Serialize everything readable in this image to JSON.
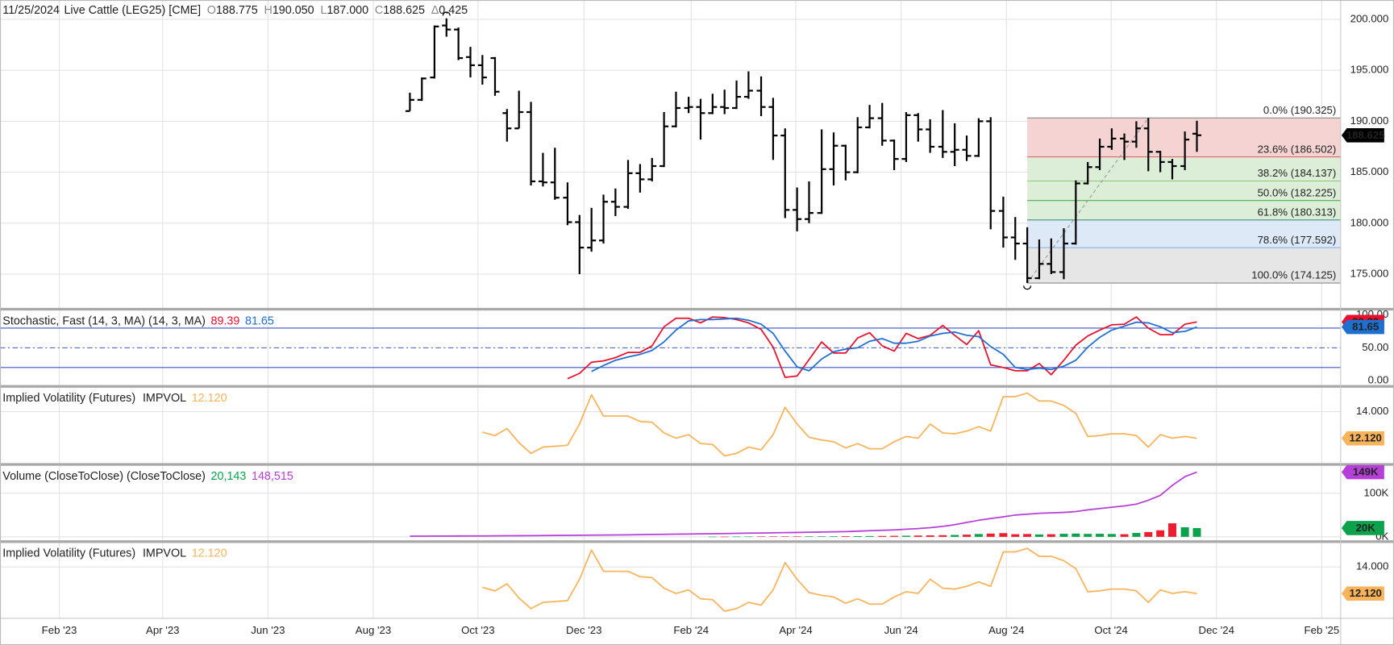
{
  "chart_data": [
    {
      "type": "ohlc",
      "header": {
        "date": "11/25/2024",
        "symbol": "Live Cattle (LEG25) [CME]",
        "fields": [
          {
            "key": "O",
            "label": "188.775"
          },
          {
            "key": "H",
            "label": "190.050"
          },
          {
            "key": "L",
            "label": "187.000"
          },
          {
            "key": "C",
            "label": "188.625"
          },
          {
            "key": "Δ",
            "label": "0.425"
          }
        ]
      },
      "color": "#000000",
      "tag_color": "#000000",
      "grid": true,
      "xlim": [
        2022.989,
        2025.115
      ],
      "xticks": [
        {
          "value": 2023.083,
          "label": "Feb '23"
        },
        {
          "value": 2023.247,
          "label": "Apr '23"
        },
        {
          "value": 2023.414,
          "label": "Jun '23"
        },
        {
          "value": 2023.581,
          "label": "Aug '23"
        },
        {
          "value": 2023.747,
          "label": "Oct '23"
        },
        {
          "value": 2023.915,
          "label": "Dec '23"
        },
        {
          "value": 2024.085,
          "label": "Feb '24"
        },
        {
          "value": 2024.251,
          "label": "Apr '24"
        },
        {
          "value": 2024.418,
          "label": "Jun '24"
        },
        {
          "value": 2024.585,
          "label": "Aug '24"
        },
        {
          "value": 2024.751,
          "label": "Oct '24"
        },
        {
          "value": 2024.918,
          "label": "Dec '24"
        },
        {
          "value": 2025.085,
          "label": "Feb '25"
        }
      ],
      "ylim": [
        171.6,
        201.9
      ],
      "yticks": [
        {
          "value": 175,
          "label": "175.000"
        },
        {
          "value": 180,
          "label": "180.000"
        },
        {
          "value": 185,
          "label": "185.000"
        },
        {
          "value": 190,
          "label": "190.000"
        },
        {
          "value": 195,
          "label": "195.000"
        },
        {
          "value": 200,
          "label": "200.000"
        }
      ],
      "x": [
        2023.639,
        2023.658,
        2023.678,
        2023.697,
        2023.716,
        2023.735,
        2023.754,
        2023.774,
        2023.793,
        2023.812,
        2023.831,
        2023.85,
        2023.869,
        2023.889,
        2023.908,
        2023.927,
        2023.946,
        2023.965,
        2023.985,
        2024.004,
        2024.023,
        2024.042,
        2024.061,
        2024.081,
        2024.1,
        2024.119,
        2024.138,
        2024.157,
        2024.176,
        2024.196,
        2024.215,
        2024.234,
        2024.253,
        2024.272,
        2024.292,
        2024.311,
        2024.33,
        2024.349,
        2024.368,
        2024.388,
        2024.407,
        2024.426,
        2024.445,
        2024.464,
        2024.484,
        2024.503,
        2024.522,
        2024.541,
        2024.56,
        2024.58,
        2024.599,
        2024.618,
        2024.637,
        2024.656,
        2024.676,
        2024.695,
        2024.714,
        2024.733,
        2024.752,
        2024.772,
        2024.791,
        2024.81,
        2024.829,
        2024.848,
        2024.868,
        2024.887
      ],
      "open": [
        191.0,
        192.1,
        194.3,
        199.4,
        199.0,
        196.3,
        195.5,
        196.2,
        190.8,
        189.3,
        190.9,
        184.1,
        184.0,
        182.5,
        180.1,
        177.6,
        178.3,
        182.1,
        181.6,
        184.9,
        184.3,
        185.6,
        189.5,
        191.3,
        191.4,
        190.8,
        191.4,
        191.3,
        192.4,
        193.0,
        191.4,
        188.6,
        181.3,
        180.4,
        181.0,
        185.3,
        187.6,
        185.0,
        189.4,
        190.3,
        188.1,
        186.3,
        190.6,
        189.2,
        187.5,
        187.0,
        187.2,
        186.6,
        190.0,
        181.2,
        178.6,
        178.0,
        174.6,
        176.0,
        175.2,
        178.0,
        183.9,
        185.5,
        187.5,
        188.3,
        188.0,
        189.3,
        187.0,
        186.0,
        185.6,
        188.775
      ],
      "high": [
        192.8,
        194.3,
        199.4,
        200.1,
        199.2,
        197.3,
        196.5,
        196.3,
        191.2,
        193.0,
        191.9,
        186.9,
        187.4,
        184.0,
        180.8,
        181.5,
        182.8,
        183.4,
        186.2,
        185.8,
        186.4,
        190.9,
        192.9,
        192.4,
        192.2,
        192.7,
        193.1,
        194.0,
        194.9,
        194.4,
        192.3,
        189.3,
        183.5,
        184.1,
        189.2,
        188.9,
        187.7,
        190.4,
        191.6,
        191.8,
        188.2,
        190.9,
        190.8,
        190.2,
        191.1,
        189.8,
        188.6,
        190.3,
        190.4,
        182.6,
        180.6,
        179.6,
        178.4,
        178.5,
        179.5,
        184.2,
        186.0,
        188.3,
        189.3,
        188.8,
        190.0,
        190.325,
        187.1,
        186.3,
        189.0,
        190.05
      ],
      "low": [
        191.0,
        192.0,
        194.2,
        198.3,
        196.0,
        194.3,
        193.6,
        192.5,
        188.0,
        189.3,
        183.7,
        183.6,
        182.3,
        179.8,
        175.0,
        177.2,
        178.0,
        180.7,
        181.4,
        183.0,
        184.1,
        185.5,
        189.4,
        190.8,
        188.2,
        190.7,
        190.7,
        191.2,
        192.2,
        190.5,
        186.2,
        180.5,
        179.2,
        180.0,
        180.9,
        183.7,
        184.2,
        184.9,
        189.3,
        187.6,
        185.2,
        186.0,
        188.0,
        186.9,
        186.4,
        185.6,
        186.1,
        186.5,
        179.4,
        177.6,
        176.4,
        174.125,
        174.5,
        175.0,
        174.5,
        177.9,
        183.8,
        185.2,
        187.2,
        186.2,
        187.4,
        185.1,
        185.0,
        184.3,
        185.2,
        187.0
      ],
      "close": [
        192.1,
        194.2,
        199.3,
        199.0,
        196.2,
        195.5,
        194.3,
        192.9,
        189.3,
        190.9,
        184.1,
        184.0,
        182.5,
        180.1,
        177.6,
        178.3,
        182.1,
        181.6,
        184.9,
        184.3,
        185.6,
        189.5,
        191.3,
        191.4,
        190.8,
        191.4,
        191.3,
        192.4,
        193.0,
        191.4,
        188.6,
        181.3,
        180.4,
        181.0,
        185.3,
        187.6,
        185.0,
        189.4,
        190.3,
        188.1,
        186.3,
        190.6,
        189.2,
        187.5,
        187.0,
        187.2,
        186.6,
        190.0,
        181.2,
        178.6,
        178.0,
        174.6,
        176.0,
        175.2,
        178.0,
        183.9,
        185.5,
        187.5,
        188.3,
        188.0,
        189.3,
        187.0,
        186.0,
        185.6,
        188.2,
        188.625
      ],
      "fib": {
        "x_start": 2024.618,
        "x_end": 2024.81,
        "levels": [
          {
            "value": 190.325,
            "label": "0.0% (190.325)",
            "color": "#8a8a8a"
          },
          {
            "value": 186.502,
            "label": "23.6% (186.502)",
            "color": "#e06666"
          },
          {
            "value": 184.137,
            "label": "38.2% (184.137)",
            "color": "#93c47d"
          },
          {
            "value": 182.225,
            "label": "50.0% (182.225)",
            "color": "#4caf50"
          },
          {
            "value": 180.313,
            "label": "61.8% (180.313)",
            "color": "#3d8f80"
          },
          {
            "value": 177.592,
            "label": "78.6% (177.592)",
            "color": "#8ab4e8"
          },
          {
            "value": 174.125,
            "label": "100.0% (174.125)",
            "color": "#8a8a8a"
          }
        ],
        "fills": [
          "#f6d3d3",
          "#ddeed8",
          "#ddeed8",
          "#ddeed8",
          "#dde9f7",
          "#e6e6e6"
        ]
      }
    },
    {
      "type": "line",
      "title": "Stochastic, Fast (14, 3, MA)  (14, 3, MA)",
      "grid": false,
      "ylim": [
        -8.1,
        106.8
      ],
      "yticks": [
        {
          "value": 0,
          "label": "0.00"
        },
        {
          "value": 50,
          "label": "50.00"
        },
        {
          "value": 100,
          "label": "100.00"
        }
      ],
      "levels": [
        80,
        50,
        20
      ],
      "level_dash": [
        false,
        true,
        false
      ],
      "level_color": "#3a55c8",
      "series": [
        {
          "color": "#e8112d",
          "values": [
            null,
            null,
            null,
            null,
            null,
            null,
            null,
            null,
            null,
            null,
            null,
            null,
            null,
            3,
            11,
            28,
            30,
            35,
            43,
            43,
            53,
            82,
            95,
            95,
            88,
            97,
            96,
            93,
            88,
            78,
            51,
            5,
            7,
            32,
            59,
            42,
            42,
            65,
            73,
            53,
            45,
            72,
            64,
            69,
            84,
            69,
            55,
            76,
            24,
            20,
            15,
            15,
            26,
            9,
            31,
            54,
            68,
            77,
            85,
            86,
            97,
            80,
            70,
            70,
            86,
            89.39
          ]
        },
        {
          "color": "#1f6fd1",
          "values": [
            null,
            null,
            null,
            null,
            null,
            null,
            null,
            null,
            null,
            null,
            null,
            null,
            null,
            null,
            null,
            14,
            23,
            31,
            36,
            40,
            46,
            59,
            77,
            91,
            93,
            93,
            94,
            95,
            92,
            86,
            72,
            45,
            21,
            15,
            33,
            44,
            48,
            50,
            60,
            64,
            57,
            57,
            60,
            68,
            72,
            74,
            69,
            67,
            52,
            40,
            20,
            17,
            19,
            17,
            22,
            31,
            51,
            66,
            77,
            83,
            89,
            88,
            82,
            73,
            75,
            81.65
          ]
        }
      ]
    },
    {
      "type": "line",
      "title": "Implied Volatility (Futures)",
      "indicator": "IMPVOL",
      "grid": true,
      "ylim": [
        10.37,
        15.69
      ],
      "yticks": [
        {
          "value": 14,
          "label": "14.000"
        }
      ],
      "series": [
        {
          "color": "#f9b35a",
          "last_labels": {
            "legend": "12.120",
            "tag": "12.120"
          },
          "values": [
            null,
            null,
            null,
            null,
            null,
            null,
            12.56,
            12.31,
            12.81,
            11.81,
            11.06,
            11.5,
            11.56,
            11.63,
            13.13,
            15.19,
            13.69,
            13.69,
            13.69,
            13.31,
            13.25,
            12.5,
            12.13,
            12.38,
            11.75,
            11.69,
            10.88,
            11.06,
            11.5,
            11.31,
            12.38,
            14.31,
            13.13,
            12.19,
            12.0,
            11.88,
            11.44,
            11.75,
            11.38,
            11.38,
            11.88,
            12.25,
            12.13,
            13.13,
            12.5,
            12.44,
            12.63,
            12.94,
            12.63,
            15.06,
            15.06,
            15.31,
            14.75,
            14.75,
            14.44,
            13.88,
            12.25,
            12.31,
            12.44,
            12.44,
            12.31,
            11.5,
            12.38,
            12.13,
            12.25,
            12.12
          ]
        }
      ]
    },
    {
      "type": "bar",
      "title": "Volume (CloseToClose)  (CloseToClose)",
      "grid": true,
      "ylim": [
        -10000,
        163000
      ],
      "yticks": [
        {
          "value": 0,
          "label": "0K"
        },
        {
          "value": 100000,
          "label": "100K"
        }
      ],
      "series": [
        {
          "type": "bar",
          "up_color": "#0aa24a",
          "down_color": "#ee1c2e",
          "last_labels": {
            "legend": "20,143",
            "tag": "20K"
          },
          "values": [
            null,
            null,
            null,
            null,
            null,
            null,
            null,
            null,
            null,
            null,
            null,
            null,
            null,
            null,
            null,
            null,
            null,
            null,
            null,
            null,
            null,
            null,
            null,
            null,
            null,
            300,
            400,
            500,
            600,
            700,
            800,
            900,
            1000,
            1100,
            1200,
            1300,
            1400,
            1600,
            1800,
            2000,
            2300,
            2600,
            3000,
            3400,
            3800,
            4300,
            5000,
            6500,
            7500,
            8500,
            6000,
            6500,
            5500,
            6000,
            7000,
            7500,
            6800,
            7000,
            6500,
            6000,
            9000,
            11000,
            15000,
            31000,
            22000,
            20143
          ]
        },
        {
          "type": "line",
          "color": "#b63fd8",
          "last_labels": {
            "legend": "148,515",
            "tag": "149K"
          },
          "values": [
            1500,
            1600,
            1700,
            1800,
            1900,
            2000,
            2100,
            2200,
            2400,
            2600,
            2800,
            3000,
            3200,
            3400,
            3600,
            3800,
            4000,
            4300,
            4600,
            5000,
            5400,
            5800,
            6200,
            6500,
            6800,
            7200,
            7600,
            8000,
            8400,
            8800,
            9200,
            9600,
            10000,
            10500,
            11000,
            11500,
            12000,
            13000,
            14000,
            15000,
            16000,
            17500,
            19000,
            21000,
            24000,
            28000,
            33000,
            38000,
            42000,
            46000,
            50000,
            52000,
            54000,
            55000,
            56000,
            58000,
            62000,
            65000,
            68000,
            71000,
            75000,
            84000,
            95000,
            118000,
            138000,
            148515
          ]
        }
      ]
    },
    {
      "type": "line",
      "title": "Implied Volatility (Futures)",
      "indicator": "IMPVOL",
      "grid": true,
      "ylim": [
        10.37,
        15.69
      ],
      "yticks": [
        {
          "value": 14,
          "label": "14.000"
        }
      ],
      "series": [
        {
          "color": "#f9b35a",
          "last_labels": {
            "legend": "12.120",
            "tag": "12.120"
          },
          "values": [
            null,
            null,
            null,
            null,
            null,
            null,
            12.56,
            12.31,
            12.81,
            11.81,
            11.06,
            11.5,
            11.56,
            11.63,
            13.13,
            15.19,
            13.69,
            13.69,
            13.69,
            13.31,
            13.25,
            12.5,
            12.13,
            12.38,
            11.75,
            11.69,
            10.88,
            11.06,
            11.5,
            11.31,
            12.38,
            14.31,
            13.13,
            12.19,
            12.0,
            11.88,
            11.44,
            11.75,
            11.38,
            11.38,
            11.88,
            12.25,
            12.13,
            13.13,
            12.5,
            12.44,
            12.63,
            12.94,
            12.63,
            15.06,
            15.06,
            15.31,
            14.75,
            14.75,
            14.44,
            13.88,
            12.25,
            12.31,
            12.44,
            12.44,
            12.31,
            11.5,
            12.38,
            12.13,
            12.25,
            12.12
          ]
        }
      ]
    }
  ]
}
